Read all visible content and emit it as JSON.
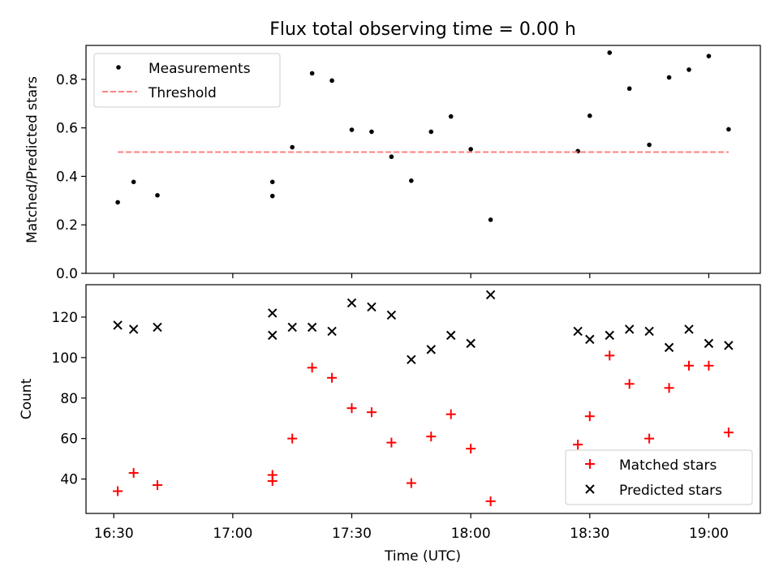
{
  "chart_data": [
    {
      "type": "scatter",
      "title": "Flux total observing time = 0.00 h",
      "xlabel": "",
      "ylabel": "Matched/Predicted stars",
      "ylim": [
        0,
        0.94
      ],
      "yticks": [
        0.0,
        0.2,
        0.4,
        0.6,
        0.8
      ],
      "ytick_labels": [
        "0.0",
        "0.2",
        "0.4",
        "0.6",
        "0.8"
      ],
      "xlim": [
        "16:23",
        "19:13"
      ],
      "grid": false,
      "legend_position": "top-left",
      "series": [
        {
          "name": "Measurements",
          "color": "#000000",
          "marker": "dot",
          "x": [
            "16:31",
            "16:35",
            "16:41",
            "17:10",
            "17:10",
            "17:15",
            "17:20",
            "17:25",
            "17:30",
            "17:35",
            "17:40",
            "17:45",
            "17:50",
            "17:55",
            "18:00",
            "18:05",
            "18:27",
            "18:30",
            "18:35",
            "18:40",
            "18:45",
            "18:50",
            "18:55",
            "19:00",
            "19:05"
          ],
          "y": [
            0.293,
            0.377,
            0.322,
            0.377,
            0.319,
            0.52,
            0.825,
            0.795,
            0.592,
            0.584,
            0.481,
            0.382,
            0.584,
            0.647,
            0.512,
            0.221,
            0.504,
            0.65,
            0.91,
            0.762,
            0.53,
            0.808,
            0.84,
            0.896,
            0.594
          ]
        },
        {
          "name": "Threshold",
          "color": "#ff8080",
          "line_style": "dashed",
          "x": [
            "16:31",
            "19:05"
          ],
          "y": [
            0.5,
            0.5
          ]
        }
      ]
    },
    {
      "type": "scatter",
      "title": "",
      "xlabel": "Time (UTC)",
      "ylabel": "Count",
      "ylim": [
        23,
        136
      ],
      "yticks": [
        40,
        60,
        80,
        100,
        120
      ],
      "ytick_labels": [
        "40",
        "60",
        "80",
        "100",
        "120"
      ],
      "xlim": [
        "16:23",
        "19:13"
      ],
      "xticks": [
        "16:30",
        "17:00",
        "17:30",
        "18:00",
        "18:30",
        "19:00"
      ],
      "xtick_labels": [
        "16:30",
        "17:00",
        "17:30",
        "18:00",
        "18:30",
        "19:00"
      ],
      "grid": false,
      "legend_position": "bottom-right",
      "series": [
        {
          "name": "Matched stars",
          "color": "#ff0000",
          "marker": "plus",
          "x": [
            "16:31",
            "16:35",
            "16:41",
            "17:10",
            "17:10",
            "17:15",
            "17:20",
            "17:25",
            "17:30",
            "17:35",
            "17:40",
            "17:45",
            "17:50",
            "17:55",
            "18:00",
            "18:05",
            "18:27",
            "18:30",
            "18:35",
            "18:40",
            "18:45",
            "18:50",
            "18:55",
            "19:00",
            "19:05"
          ],
          "y": [
            34,
            43,
            37,
            42,
            39,
            60,
            95,
            90,
            75,
            73,
            58,
            38,
            61,
            72,
            55,
            29,
            57,
            71,
            101,
            87,
            60,
            85,
            96,
            96,
            63
          ]
        },
        {
          "name": "Predicted stars",
          "color": "#000000",
          "marker": "x",
          "x": [
            "16:31",
            "16:35",
            "16:41",
            "17:10",
            "17:10",
            "17:15",
            "17:20",
            "17:25",
            "17:30",
            "17:35",
            "17:40",
            "17:45",
            "17:50",
            "17:55",
            "18:00",
            "18:05",
            "18:27",
            "18:30",
            "18:35",
            "18:40",
            "18:45",
            "18:50",
            "18:55",
            "19:00",
            "19:05"
          ],
          "y": [
            116,
            114,
            115,
            122,
            111,
            115,
            115,
            113,
            127,
            125,
            121,
            99,
            104,
            111,
            107,
            131,
            113,
            109,
            111,
            114,
            113,
            105,
            114,
            107,
            106
          ]
        }
      ]
    }
  ]
}
